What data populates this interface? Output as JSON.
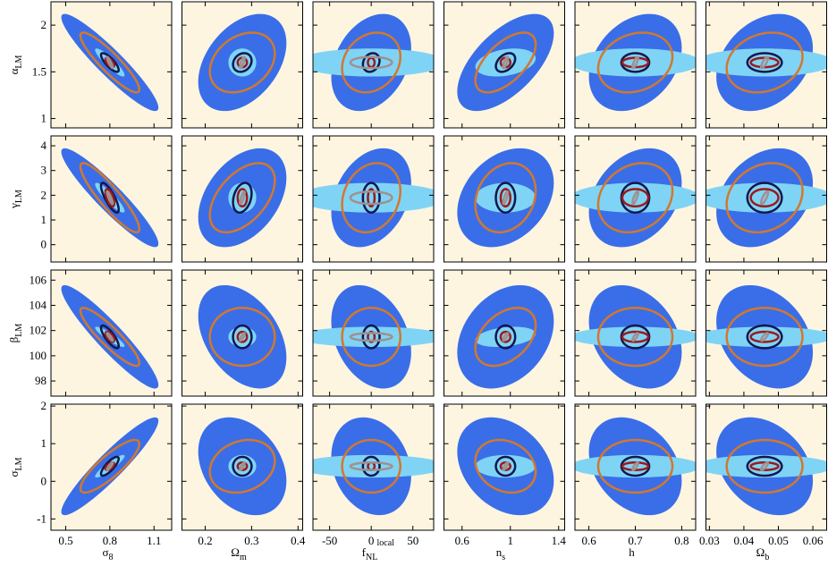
{
  "chart_data": {
    "type": "ellipse_grid",
    "columns": [
      {
        "label": "σ",
        "sub": "8",
        "x0": 0.8,
        "xlim": [
          0.4,
          1.22
        ],
        "xticks": [
          0.5,
          0.8,
          1.1
        ]
      },
      {
        "label": "Ω",
        "sub": "m",
        "x0": 0.28,
        "xlim": [
          0.15,
          0.41
        ],
        "xticks": [
          0.2,
          0.3,
          0.4
        ]
      },
      {
        "label": "f",
        "sub": "NL",
        "sup": "local",
        "x0": 0,
        "xlim": [
          -70,
          75
        ],
        "xticks": [
          -50,
          0,
          50
        ]
      },
      {
        "label": "n",
        "sub": "s",
        "x0": 0.96,
        "xlim": [
          0.45,
          1.45
        ],
        "xticks": [
          0.6,
          1,
          1.4
        ]
      },
      {
        "label": "h",
        "x0": 0.7,
        "xlim": [
          0.57,
          0.83
        ],
        "xticks": [
          0.6,
          0.7,
          0.8
        ]
      },
      {
        "label": "Ω",
        "sub": "b",
        "x0": 0.046,
        "xlim": [
          0.029,
          0.064
        ],
        "xticks": [
          0.03,
          0.04,
          0.05,
          0.06
        ]
      }
    ],
    "rows": [
      {
        "label": "α",
        "sub": "LM",
        "y0": 1.6,
        "ylim": [
          0.9,
          2.25
        ],
        "yticks": [
          1,
          1.5,
          2
        ]
      },
      {
        "label": "γ",
        "sub": "LM",
        "y0": 1.9,
        "ylim": [
          -0.7,
          4.4
        ],
        "yticks": [
          0,
          1,
          2,
          3,
          4
        ]
      },
      {
        "label": "β",
        "sub": "LM",
        "y0": 101.5,
        "ylim": [
          96.8,
          106.8
        ],
        "yticks": [
          98,
          100,
          102,
          104,
          106
        ]
      },
      {
        "label": "σ",
        "sub": "LM",
        "y0": 0.4,
        "ylim": [
          -1.3,
          2.05
        ],
        "yticks": [
          -1,
          0,
          1,
          2
        ]
      }
    ],
    "series": [
      {
        "color": "#3a6ee8",
        "fill": true,
        "sx": [
          0.33,
          0.095,
          48,
          0.4,
          0.1,
          0.014
        ],
        "sy": [
          0.52,
          2.0,
          4.1,
          1.3
        ],
        "rho": [
          [
            -0.93,
            0.4,
            0.3,
            0.6,
            0.3,
            0.3
          ],
          [
            -0.93,
            0.4,
            0.3,
            0.3,
            0.3,
            0.3
          ],
          [
            -0.93,
            -0.4,
            -0.3,
            0.3,
            -0.3,
            -0.3
          ],
          [
            0.93,
            -0.3,
            -0.2,
            -0.3,
            -0.3,
            -0.3
          ]
        ]
      },
      {
        "color": "#7fd4f5",
        "fill": true,
        "sx": [
          0.1,
          0.03,
          90,
          0.25,
          0.14,
          0.02
        ],
        "sy": [
          0.15,
          0.6,
          0.8,
          0.3
        ],
        "rho": [
          [
            -0.9,
            0,
            0,
            0.3,
            0,
            0
          ],
          [
            -0.9,
            0,
            0,
            0,
            0,
            0
          ],
          [
            -0.9,
            0,
            0,
            0.3,
            0,
            0
          ],
          [
            0.9,
            0,
            0,
            0,
            0,
            0
          ]
        ]
      },
      {
        "color": "#d2782e",
        "fill": false,
        "sx": [
          0.2,
          0.07,
          35,
          0.25,
          0.08,
          0.011
        ],
        "sy": [
          0.32,
          1.4,
          2.3,
          0.7
        ],
        "rho": [
          [
            -0.9,
            0.3,
            0.2,
            0.6,
            0.2,
            0.2
          ],
          [
            -0.9,
            0.5,
            0.2,
            0.2,
            0.2,
            0.2
          ],
          [
            -0.9,
            0,
            0,
            0.4,
            0,
            0
          ],
          [
            0.85,
            0.2,
            0,
            -0.2,
            0,
            0
          ]
        ]
      },
      {
        "color": "#101850",
        "fill": false,
        "sx": [
          0.06,
          0.02,
          10,
          0.08,
          0.03,
          0.005
        ],
        "sy": [
          0.1,
          0.6,
          0.9,
          0.25
        ],
        "rho": [
          [
            -0.8,
            0.2,
            0.2,
            0.4,
            0,
            0
          ],
          [
            -0.8,
            0.3,
            0,
            0,
            0,
            0
          ],
          [
            -0.8,
            0,
            0,
            0,
            0,
            0
          ],
          [
            0.8,
            0,
            0,
            0,
            0,
            0
          ]
        ]
      },
      {
        "color": "#9b1a1a",
        "fill": false,
        "sx": [
          0.03,
          0.01,
          4,
          0.04,
          0.028,
          0.004
        ],
        "sy": [
          0.05,
          0.35,
          0.4,
          0.1
        ],
        "rho": [
          [
            -0.6,
            0,
            0,
            0,
            0,
            0
          ],
          [
            -0.6,
            0,
            0,
            0,
            0,
            0
          ],
          [
            -0.6,
            0,
            0,
            0,
            0,
            0
          ],
          [
            0.6,
            0,
            0,
            0,
            0,
            0
          ]
        ]
      },
      {
        "color": "#a09090",
        "fill": false,
        "sx": [
          0.02,
          0.005,
          25,
          0.02,
          0.006,
          0.001
        ],
        "sy": [
          0.06,
          0.25,
          0.3,
          0.1
        ],
        "rho": [
          [
            -0.9,
            0.8,
            0,
            0.8,
            0.8,
            0.8
          ],
          [
            -0.9,
            0.8,
            0,
            0.8,
            0.8,
            0.8
          ],
          [
            -0.9,
            0.8,
            0,
            0.8,
            0.8,
            0.8
          ],
          [
            0.9,
            0.8,
            0,
            0.8,
            0.8,
            0.8
          ]
        ]
      }
    ]
  }
}
